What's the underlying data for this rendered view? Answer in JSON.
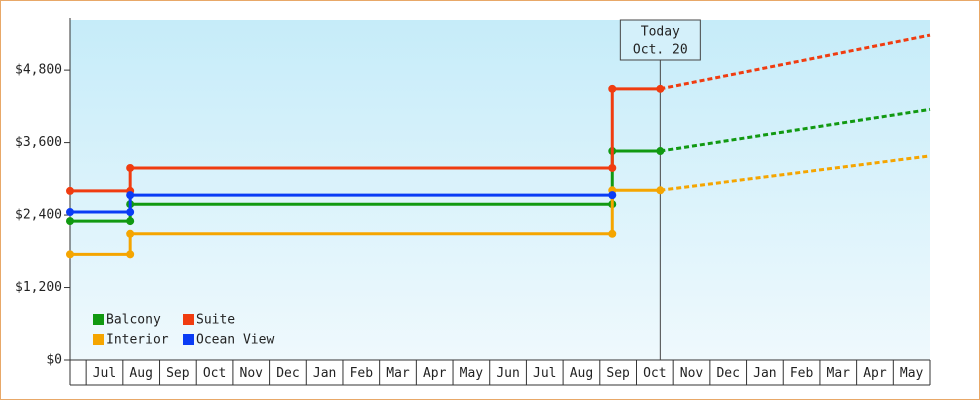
{
  "chart_data": {
    "type": "step-line",
    "ylim": [
      0,
      5630
    ],
    "yticks": [
      {
        "value": 0,
        "label": "$0"
      },
      {
        "value": 1200,
        "label": "$1,200"
      },
      {
        "value": 2400,
        "label": "$2,400"
      },
      {
        "value": 3600,
        "label": "$3,600"
      },
      {
        "value": 4800,
        "label": "$4,800"
      }
    ],
    "xlim": [
      -0.44,
      23
    ],
    "xticks": [
      {
        "value": 0,
        "label": "Jul"
      },
      {
        "value": 1,
        "label": "Aug"
      },
      {
        "value": 2,
        "label": "Sep"
      },
      {
        "value": 3,
        "label": "Oct"
      },
      {
        "value": 4,
        "label": "Nov"
      },
      {
        "value": 5,
        "label": "Dec"
      },
      {
        "value": 6,
        "label": "Jan"
      },
      {
        "value": 7,
        "label": "Feb"
      },
      {
        "value": 8,
        "label": "Mar"
      },
      {
        "value": 9,
        "label": "Apr"
      },
      {
        "value": 10,
        "label": "May"
      },
      {
        "value": 11,
        "label": "Jun"
      },
      {
        "value": 12,
        "label": "Jul"
      },
      {
        "value": 13,
        "label": "Aug"
      },
      {
        "value": 14,
        "label": "Sep"
      },
      {
        "value": 15,
        "label": "Oct"
      },
      {
        "value": 16,
        "label": "Nov"
      },
      {
        "value": 17,
        "label": "Dec"
      },
      {
        "value": 18,
        "label": "Jan"
      },
      {
        "value": 19,
        "label": "Feb"
      },
      {
        "value": 20,
        "label": "Mar"
      },
      {
        "value": 21,
        "label": "Apr"
      },
      {
        "value": 22,
        "label": "May"
      }
    ],
    "today_x": 15.65,
    "today_label": [
      "Today",
      "Oct. 20"
    ],
    "legend_position": "lower left",
    "series": [
      {
        "name": "Balcony",
        "color": "#119911",
        "x": [
          -0.44,
          1.2,
          1.2,
          14.34,
          14.34,
          15.65
        ],
        "values": [
          2300,
          2300,
          2580,
          2580,
          3460,
          3460
        ],
        "projection_x": [
          15.65,
          23
        ],
        "projection_values": [
          3460,
          4150
        ]
      },
      {
        "name": "Suite",
        "color": "#f03c10",
        "x": [
          -0.44,
          1.2,
          1.2,
          14.34,
          14.34,
          15.65
        ],
        "values": [
          2800,
          2800,
          3180,
          3180,
          4490,
          4490
        ],
        "projection_x": [
          15.65,
          23
        ],
        "projection_values": [
          4490,
          5380
        ]
      },
      {
        "name": "Interior",
        "color": "#f5a500",
        "x": [
          -0.44,
          1.2,
          1.2,
          14.34,
          14.34,
          15.65
        ],
        "values": [
          1750,
          1750,
          2090,
          2090,
          2810,
          2810
        ],
        "projection_x": [
          15.65,
          23
        ],
        "projection_values": [
          2810,
          3380
        ]
      },
      {
        "name": "Ocean View",
        "color": "#0a3cf5",
        "x": [
          -0.44,
          1.2,
          1.2,
          14.34
        ],
        "values": [
          2450,
          2450,
          2730,
          2730
        ]
      }
    ]
  }
}
